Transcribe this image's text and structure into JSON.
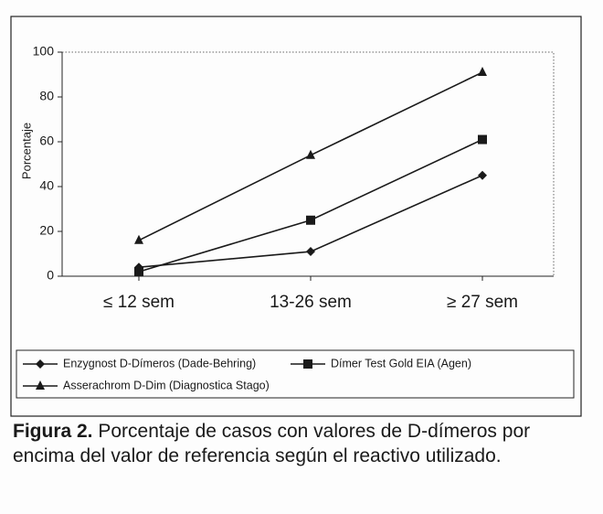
{
  "chart_data": {
    "type": "line",
    "y_label": "Porcentaje",
    "categories": [
      "≤ 12 sem",
      "13-26 sem",
      "≥ 27 sem"
    ],
    "series": [
      {
        "name": "Enzygnost D-Dímeros (Dade-Behring)",
        "color": "#1a1a1a",
        "marker": "diamond",
        "values": [
          4,
          11,
          45
        ]
      },
      {
        "name": "Dímer Test Gold EIA (Agen)",
        "color": "#1a1a1a",
        "marker": "square",
        "values": [
          2,
          25,
          61
        ]
      },
      {
        "name": "Asserachrom D-Dim (Diagnostica Stago)",
        "color": "#1a1a1a",
        "marker": "triangle",
        "values": [
          16,
          54,
          91
        ]
      }
    ],
    "ylim": [
      0,
      100
    ],
    "yticks": [
      0,
      20,
      40,
      60,
      80,
      100
    ],
    "grid": false,
    "caption_label": "Figura 2.",
    "caption_text": "Porcentaje de casos con valores de D-dímeros por encima del valor de referencia según el reactivo utilizado."
  }
}
